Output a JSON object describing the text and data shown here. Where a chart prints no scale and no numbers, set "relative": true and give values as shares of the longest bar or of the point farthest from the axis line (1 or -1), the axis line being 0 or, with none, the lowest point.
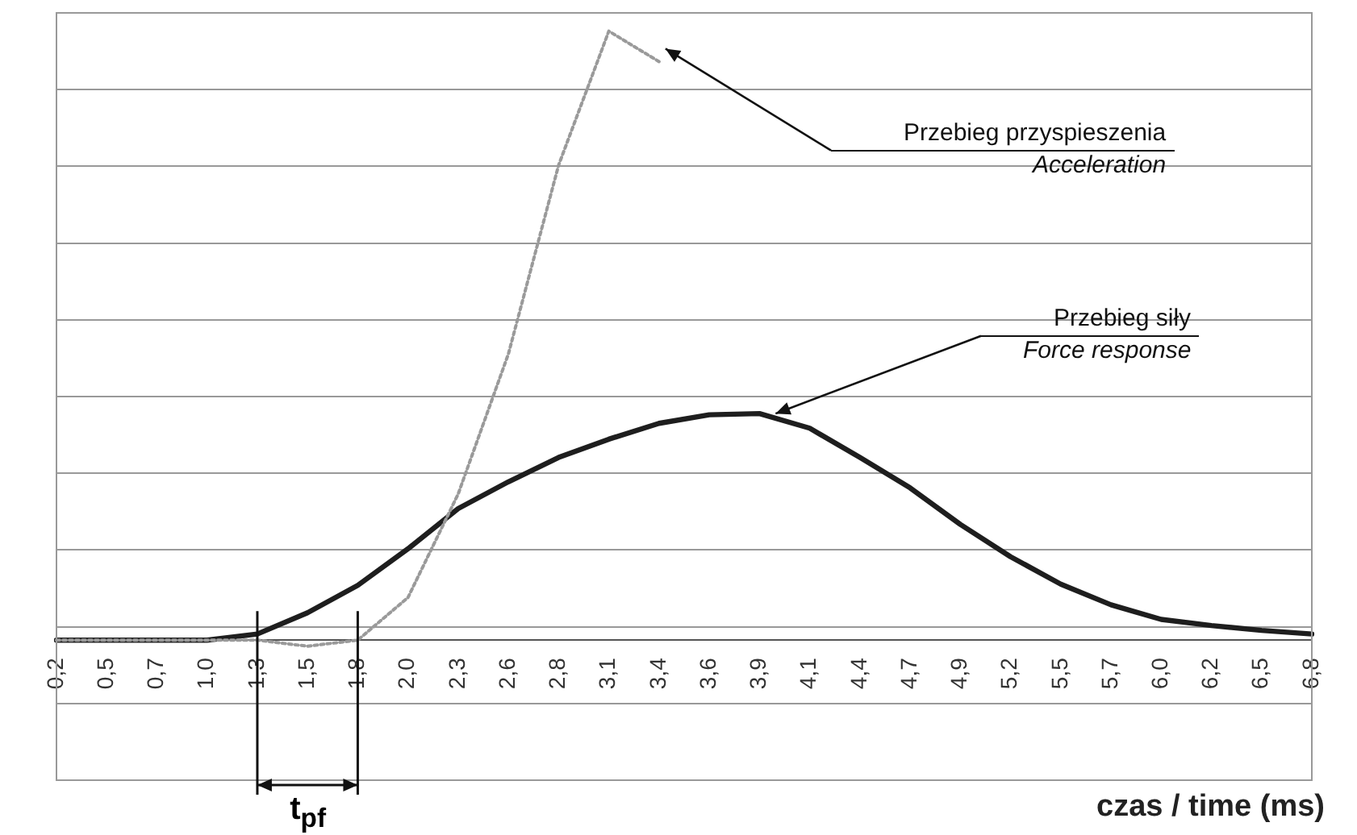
{
  "chart_data": {
    "type": "line",
    "relative": true,
    "xlabel": "czas / time (ms)",
    "categories": [
      "0,2",
      "0,5",
      "0,7",
      "1,0",
      "1,3",
      "1,5",
      "1,8",
      "2,0",
      "2,3",
      "2,6",
      "2,8",
      "3,1",
      "3,4",
      "3,6",
      "3,9",
      "4,1",
      "4,4",
      "4,7",
      "4,9",
      "5,2",
      "5,5",
      "5,7",
      "6,0",
      "6,2",
      "6,5",
      "6,8"
    ],
    "series": [
      {
        "color": "#9a9a9a",
        "line_style": "dotted",
        "values": [
          0,
          0,
          0,
          0,
          0,
          -0.01,
          0,
          0.07,
          0.24,
          0.47,
          0.78,
          1,
          0.95,
          null,
          null,
          null,
          null,
          null,
          null,
          null,
          null,
          null,
          null,
          null,
          null,
          null
        ]
      },
      {
        "color": "#1e1e1e",
        "line_style": "solid",
        "values": [
          0,
          0,
          0,
          0,
          0.01,
          0.045,
          0.09,
          0.15,
          0.216,
          0.26,
          0.3,
          0.33,
          0.356,
          0.37,
          0.372,
          0.348,
          0.3,
          0.25,
          0.19,
          0.137,
          0.092,
          0.058,
          0.034,
          0.024,
          0.016,
          0.01
        ]
      }
    ],
    "annotations": [
      "Przebieg przyspieszenia",
      "Acceleration",
      "Przebieg siły",
      "Force response",
      "t$_{pf}$"
    ],
    "grid": "y",
    "legend": false,
    "marker": "none"
  }
}
